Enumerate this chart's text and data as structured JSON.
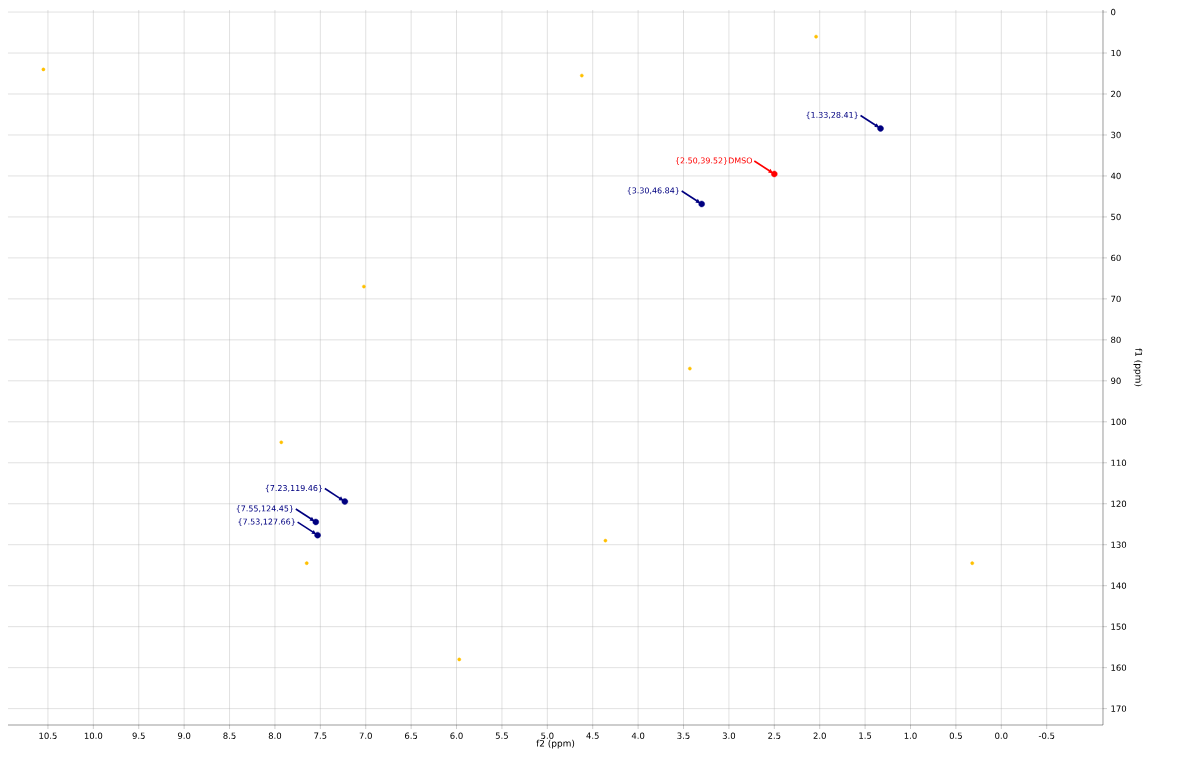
{
  "chart_data": {
    "type": "scatter",
    "xlabel": "f2 (ppm)",
    "ylabel": "f1 (ppm)",
    "xlim": [
      10.94,
      -1.12
    ],
    "ylim": [
      174,
      -0.5
    ],
    "xticks": [
      10.5,
      {
        "value": 10,
        "label": "10.0"
      },
      9.5,
      {
        "value": 9,
        "label": "9.0"
      },
      8.5,
      {
        "value": 8,
        "label": "8.0"
      },
      7.5,
      {
        "value": 7,
        "label": "7.0"
      },
      6.5,
      {
        "value": 6,
        "label": "6.0"
      },
      5.5,
      {
        "value": 5,
        "label": "5.0"
      },
      4.5,
      {
        "value": 4,
        "label": "4.0"
      },
      3.5,
      {
        "value": 3,
        "label": "3.0"
      },
      2.5,
      {
        "value": 2,
        "label": "2.0"
      },
      1.5,
      {
        "value": 1,
        "label": "1.0"
      },
      0.5,
      {
        "value": 0,
        "label": "0.0"
      },
      -0.5
    ],
    "yticks": [
      0,
      10,
      20,
      30,
      40,
      50,
      60,
      70,
      80,
      90,
      100,
      110,
      120,
      130,
      140,
      150,
      160,
      170
    ],
    "grid": true,
    "series": [
      {
        "color": "#ffc000",
        "x": [
          10.55,
          4.62,
          2.04,
          7.02,
          3.43,
          7.93,
          7.65,
          4.36,
          5.97,
          0.32
        ],
        "values": [
          14,
          15.5,
          6,
          67,
          87,
          105,
          134.5,
          129,
          158,
          134.5
        ]
      },
      {
        "color": "#000080",
        "x": [
          1.33,
          3.3,
          7.23,
          7.55,
          7.53
        ],
        "values": [
          28.41,
          46.84,
          119.46,
          124.45,
          127.66
        ]
      },
      {
        "color": "#ff0000",
        "x": [
          2.5
        ],
        "values": [
          39.52
        ]
      }
    ],
    "annotations": [
      {
        "text": "{1.33,28.41}",
        "x": 1.33,
        "y": 28.41
      },
      {
        "text": "{2.50,39.52}DMSO",
        "x": 2.5,
        "y": 39.52
      },
      {
        "text": "{3.30,46.84}",
        "x": 3.3,
        "y": 46.84
      },
      {
        "text": "{7.23,119.46}",
        "x": 7.23,
        "y": 119.46
      },
      {
        "text": "{7.55,124.45}",
        "x": 7.55,
        "y": 124.45
      },
      {
        "text": "{7.53,127.66}",
        "x": 7.53,
        "y": 127.66
      }
    ]
  }
}
